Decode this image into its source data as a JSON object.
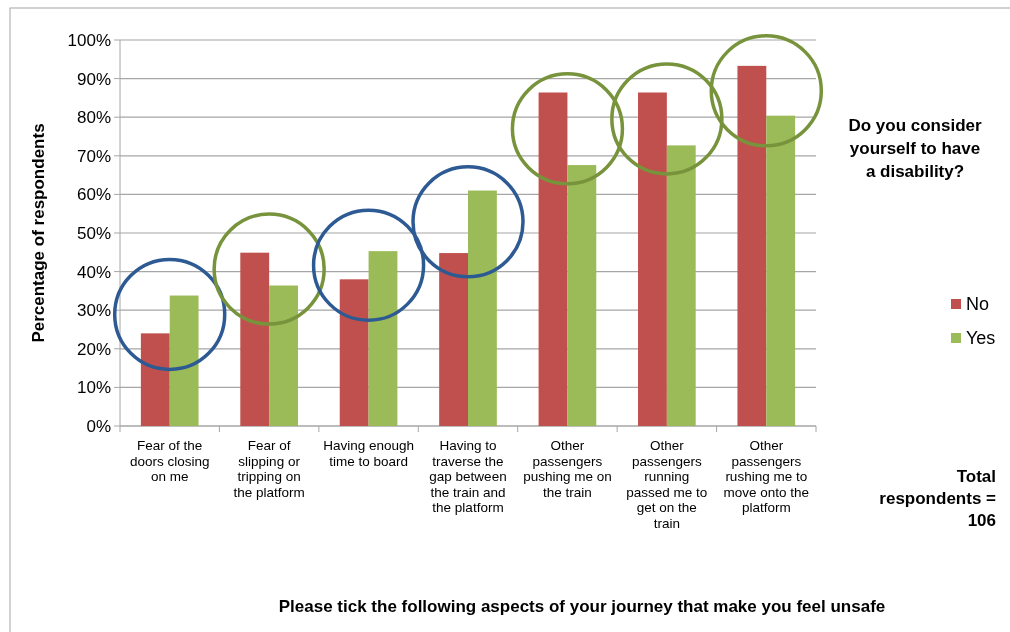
{
  "chart_data": {
    "type": "bar",
    "xlabel": "Please tick the following aspects of your journey that make you feel unsafe",
    "ylabel": "Percentage of respondents",
    "legend_title": "Do you consider yourself to have a disability?",
    "categories": [
      "Fear of the doors closing on me",
      "Fear of slipping or tripping on the platform",
      "Having enough time to board",
      "Having to traverse the gap between the train and the platform",
      "Other passengers pushing me on the train",
      "Other passengers running passed me to get on the train",
      "Other passengers rushing me to move onto the platform"
    ],
    "series": [
      {
        "name": "No",
        "color": "#c0504d",
        "values": [
          24.0,
          44.9,
          38.0,
          44.8,
          86.4,
          86.4,
          93.3
        ]
      },
      {
        "name": "Yes",
        "color": "#9bbb59",
        "values": [
          33.8,
          36.4,
          45.3,
          61.0,
          67.6,
          72.7,
          80.4
        ]
      }
    ],
    "ylim": [
      0,
      100
    ],
    "yticks": [
      {
        "value": 0,
        "label": "0%"
      },
      {
        "value": 10,
        "label": "10%"
      },
      {
        "value": 20,
        "label": "20%"
      },
      {
        "value": 30,
        "label": "30%"
      },
      {
        "value": 40,
        "label": "40%"
      },
      {
        "value": 50,
        "label": "50%"
      },
      {
        "value": 60,
        "label": "60%"
      },
      {
        "value": 70,
        "label": "70%"
      },
      {
        "value": 80,
        "label": "80%"
      },
      {
        "value": 90,
        "label": "90%"
      },
      {
        "value": 100,
        "label": "100%"
      }
    ],
    "grid": "y",
    "legend": "right",
    "annotations": [
      "Total respondents = 106"
    ]
  }
}
